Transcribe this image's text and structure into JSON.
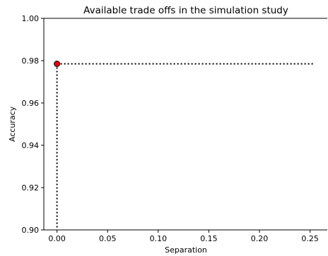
{
  "chart_data": {
    "type": "scatter",
    "title": "Available trade offs in the simulation study",
    "xlabel": "Separation",
    "ylabel": "Accuracy",
    "xlim": [
      -0.013,
      0.267
    ],
    "ylim": [
      0.9,
      1.0
    ],
    "x_ticks": [
      "0.00",
      "0.05",
      "0.10",
      "0.15",
      "0.20",
      "0.25"
    ],
    "y_ticks": [
      "0.90",
      "0.92",
      "0.94",
      "0.96",
      "0.98",
      "1.00"
    ],
    "points": [
      {
        "x": 0.0,
        "y": 0.9785
      }
    ],
    "reference_lines": {
      "horizontal": {
        "y": 0.9785,
        "x_from": 0.0,
        "x_to": 0.253,
        "style": "dotted"
      },
      "vertical": {
        "x": 0.0,
        "y_from": 0.9,
        "y_to": 0.9785,
        "style": "dotted"
      }
    },
    "colors": {
      "point_fill": "#e8000b",
      "point_edge": "#000000",
      "reference_line": "#000000"
    },
    "grid": false
  }
}
